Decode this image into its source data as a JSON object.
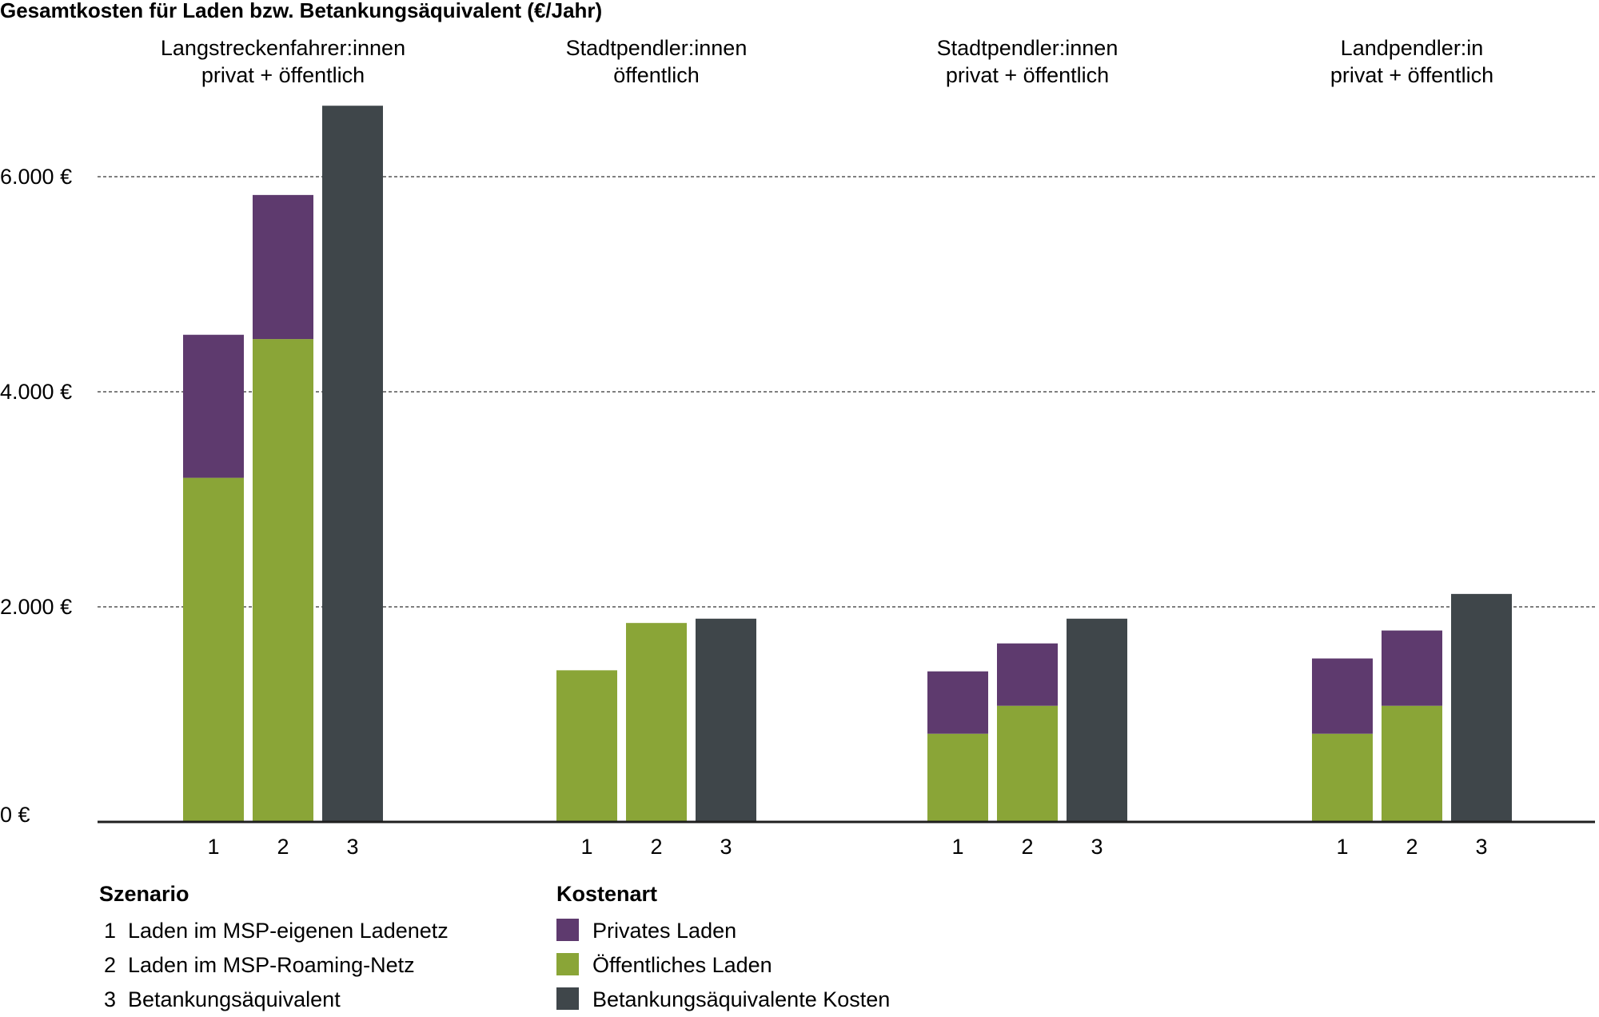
{
  "chart_data": {
    "type": "bar",
    "stacked": true,
    "title": "Gesamtkosten für Laden bzw. Betankungsäquivalent (€/Jahr)",
    "ylim": [
      0,
      6000
    ],
    "yticks": [
      {
        "value": 0,
        "label": "0 €"
      },
      {
        "value": 2000,
        "label": "2.000 €"
      },
      {
        "value": 4000,
        "label": "4.000 €"
      },
      {
        "value": 6000,
        "label": "6.000 €"
      }
    ],
    "grid": true,
    "groups": [
      {
        "label": [
          "Langstreckenfahrer:innen",
          "privat + öffentlich"
        ],
        "bars": [
          {
            "scenario": "1",
            "oeffentlich": 3200,
            "privat": 1330,
            "betankung": 0
          },
          {
            "scenario": "2",
            "oeffentlich": 4490,
            "privat": 1340,
            "betankung": 0
          },
          {
            "scenario": "3",
            "oeffentlich": 0,
            "privat": 0,
            "betankung": 6660
          }
        ]
      },
      {
        "label": [
          "Stadtpendler:innen",
          "öffentlich"
        ],
        "bars": [
          {
            "scenario": "1",
            "oeffentlich": 1410,
            "privat": 0,
            "betankung": 0
          },
          {
            "scenario": "2",
            "oeffentlich": 1850,
            "privat": 0,
            "betankung": 0
          },
          {
            "scenario": "3",
            "oeffentlich": 0,
            "privat": 0,
            "betankung": 1890
          }
        ]
      },
      {
        "label": [
          "Stadtpendler:innen",
          "privat + öffentlich"
        ],
        "bars": [
          {
            "scenario": "1",
            "oeffentlich": 820,
            "privat": 580,
            "betankung": 0
          },
          {
            "scenario": "2",
            "oeffentlich": 1080,
            "privat": 580,
            "betankung": 0
          },
          {
            "scenario": "3",
            "oeffentlich": 0,
            "privat": 0,
            "betankung": 1890
          }
        ]
      },
      {
        "label": [
          "Landpendler:in",
          "privat +  öffentlich"
        ],
        "bars": [
          {
            "scenario": "1",
            "oeffentlich": 820,
            "privat": 700,
            "betankung": 0
          },
          {
            "scenario": "2",
            "oeffentlich": 1080,
            "privat": 700,
            "betankung": 0
          },
          {
            "scenario": "3",
            "oeffentlich": 0,
            "privat": 0,
            "betankung": 2120
          }
        ]
      }
    ],
    "series": [
      {
        "key": "privat",
        "name": "Privates Laden",
        "color": "#5e3a6e"
      },
      {
        "key": "oeffentlich",
        "name": "Öffentliches Laden",
        "color": "#8aa537"
      },
      {
        "key": "betankung",
        "name": "Betankungsäquivalente Kosten",
        "color": "#3f464a"
      }
    ],
    "legend_scenario": {
      "title": "Szenario",
      "items": [
        {
          "num": "1",
          "text": "Laden im MSP-eigenen Ladenetz"
        },
        {
          "num": "2",
          "text": "Laden im MSP-Roaming-Netz"
        },
        {
          "num": "3",
          "text": "Betankungsäquivalent"
        }
      ]
    },
    "legend_costs": {
      "title": "Kostenart"
    }
  }
}
